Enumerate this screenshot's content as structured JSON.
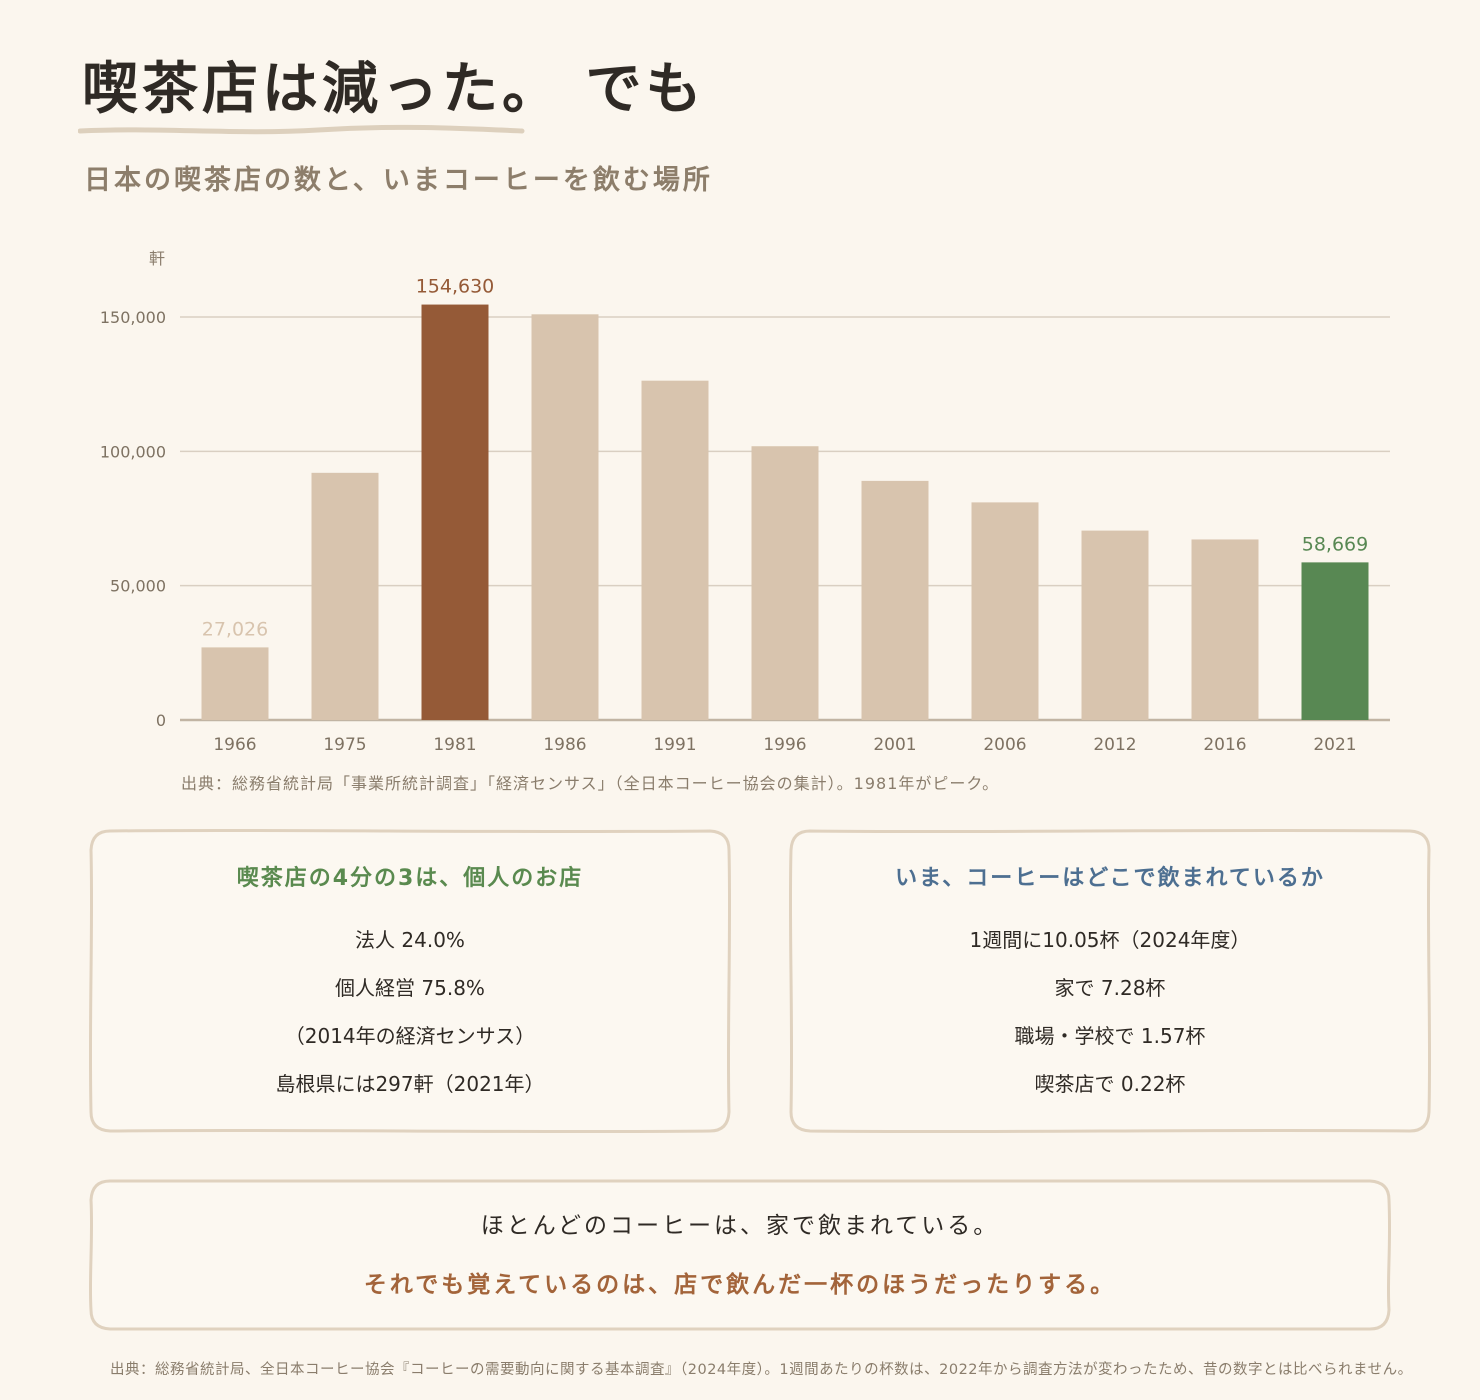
{
  "header": {
    "title": "喫茶店は減った。 でも",
    "subtitle": "日本の喫茶店の数と、いまコーヒーを飲む場所"
  },
  "colors": {
    "bar_default": "#d8c4ae",
    "bar_peak": "#955a37",
    "bar_latest": "#588853",
    "grid": "#d9cfc2",
    "axis": "#c1b4a3"
  },
  "chart_data": {
    "type": "bar",
    "ylabel": "軒",
    "xlabel": "",
    "ylim": [
      0,
      160000
    ],
    "yticks": [
      0,
      50000,
      100000,
      150000
    ],
    "ytick_labels": [
      "0",
      "50,000",
      "100,000",
      "150,000"
    ],
    "grid": true,
    "categories": [
      "1966",
      "1975",
      "1981",
      "1986",
      "1991",
      "1996",
      "2001",
      "2006",
      "2012",
      "2016",
      "2021"
    ],
    "values": [
      27026,
      92000,
      154630,
      151000,
      126300,
      101900,
      89000,
      81000,
      70500,
      67200,
      58669
    ],
    "labeled_points": [
      {
        "category": "1966",
        "label": "27,026",
        "style": "default"
      },
      {
        "category": "1981",
        "label": "154,630",
        "style": "peak"
      },
      {
        "category": "2021",
        "label": "58,669",
        "style": "latest"
      }
    ],
    "source": "出典：総務省統計局「事業所統計調査」「経済センサス」（全日本コーヒー協会の集計）。1981年がピーク。"
  },
  "cards": [
    {
      "title": "喫茶店の4分の3は、個人のお店",
      "lines": [
        "法人 24.0%",
        "個人経営 75.8%",
        "（2014年の経済センサス）",
        "島根県には297軒（2021年）"
      ]
    },
    {
      "title": "いま、コーヒーはどこで飲まれているか",
      "lines": [
        "1週間に10.05杯（2024年度）",
        "家で 7.28杯",
        "職場・学校で 1.57杯",
        "喫茶店で 0.22杯"
      ]
    }
  ],
  "conclusion": {
    "line1": "ほとんどのコーヒーは、家で飲まれている。",
    "line2": "それでも覚えているのは、店で飲んだ一杯のほうだったりする。"
  },
  "footnote": "出典：総務省統計局、全日本コーヒー協会『コーヒーの需要動向に関する基本調査』（2024年度）。1週間あたりの杯数は、2022年から調査方法が変わったため、昔の数字とは比べられません。"
}
